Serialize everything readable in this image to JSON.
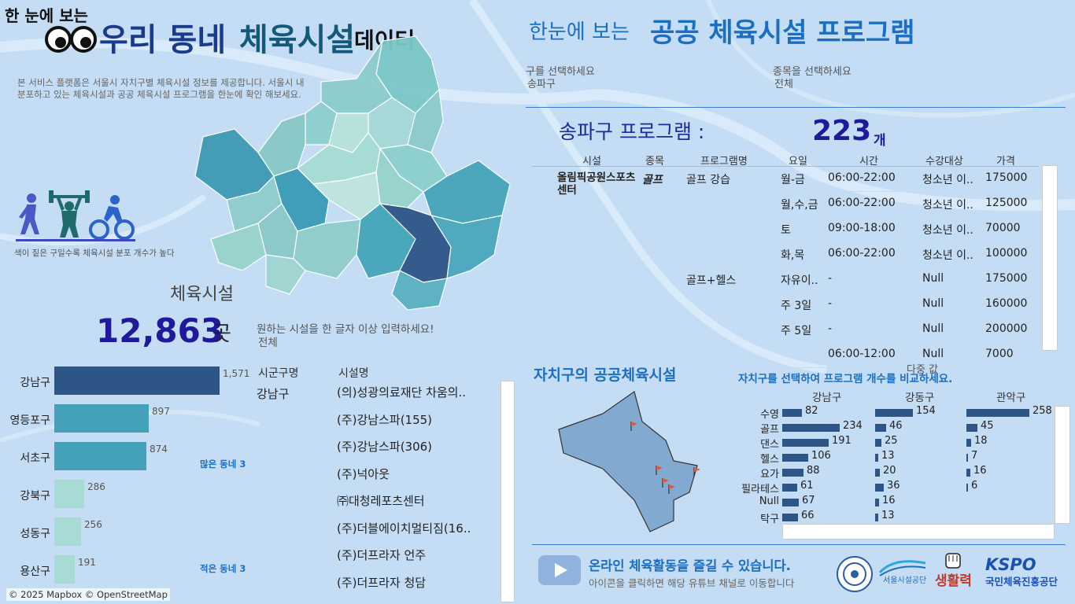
{
  "header": {
    "small_title": "한 눈에 보는",
    "main_title_part1": "우리 동네",
    "main_title_part2": "체육시설",
    "main_title_suffix": "데이터",
    "description": "본 서비스 플랫폼은 서울시 자치구별 체육시설 정보를 제공합니다. 서울시 내 분포하고 있는 체육시설과 공공 체육시설 프로그램을 한눈에 확인 해보세요.",
    "legend_note": "색이 짙은 구일수록 체육시설 분포 개수가 높다"
  },
  "facility_count": {
    "label": "체육시설",
    "value": "12,863",
    "unit": "곳"
  },
  "search": {
    "prompt": "원하는 시설을 한 글자 이상 입력하세요!",
    "value": "전체"
  },
  "district_bars": {
    "items": [
      {
        "name": "강남구",
        "value": 1571,
        "label": "1,571",
        "color": "#2d5586"
      },
      {
        "name": "영등포구",
        "value": 897,
        "label": "897",
        "color": "#45a1b9"
      },
      {
        "name": "서초구",
        "value": 874,
        "label": "874",
        "color": "#45a1b9"
      },
      {
        "name": "강북구",
        "value": 286,
        "label": "286",
        "color": "#a8dbd6"
      },
      {
        "name": "성동구",
        "value": 256,
        "label": "256",
        "color": "#a8dbd6"
      },
      {
        "name": "용산구",
        "value": 191,
        "label": "191",
        "color": "#a8dbd6"
      }
    ],
    "many_label": "많은 동네 3",
    "few_label": "적은 동네 3"
  },
  "facility_list": {
    "headers": [
      "시군구명",
      "시설명"
    ],
    "district": "강남구",
    "rows": [
      "(의)성광의료재단 차움의..",
      "(주)강남스파(155)",
      "(주)강남스파(306)",
      "(주)넉아웃",
      "㈜대청레포츠센터",
      "(주)더블에이치멀티짐(16..",
      "(주)더프라자 언주",
      "(주)더프라자 청담"
    ]
  },
  "map_credit": "© 2025 Mapbox © OpenStreetMap",
  "program": {
    "title_prefix": "한눈에 보는",
    "title_main": "공공 체육시설 프로그램",
    "district_select_label": "구를 선택하세요",
    "district_select_value": "송파구",
    "sport_select_label": "종목을 선택하세요",
    "sport_select_value": "전체",
    "count_label": "송파구 프로그램 :",
    "count_value": "223",
    "count_unit": "개",
    "headers": [
      "시설",
      "종목",
      "프로그램명",
      "요일",
      "시간",
      "수강대상",
      "가격"
    ],
    "facility_name": "올림픽공원스포츠센터",
    "sport": "골프",
    "rows": [
      {
        "prog": "골프 강습",
        "day": "월-금",
        "time": "06:00-22:00",
        "target": "청소년 이..",
        "price": "175000"
      },
      {
        "prog": "",
        "day": "월,수,금",
        "time": "06:00-22:00",
        "target": "청소년 이..",
        "price": "125000"
      },
      {
        "prog": "",
        "day": "토",
        "time": "09:00-18:00",
        "target": "청소년 이..",
        "price": "70000"
      },
      {
        "prog": "",
        "day": "화,목",
        "time": "06:00-22:00",
        "target": "청소년 이..",
        "price": "100000"
      },
      {
        "prog": "골프+헬스",
        "day": "자유이..",
        "time": "-",
        "target": "Null",
        "price": "175000"
      },
      {
        "prog": "",
        "day": "주 3일",
        "time": "-",
        "target": "Null",
        "price": "160000"
      },
      {
        "prog": "",
        "day": "주 5일",
        "time": "-",
        "target": "Null",
        "price": "200000"
      },
      {
        "prog": "",
        "day": "",
        "time": "06:00-12:00",
        "target": "Null",
        "price": "7000"
      }
    ]
  },
  "public_facilities": {
    "title": "자치구의 공공체육시설",
    "compare_title": "자치구를 선택하여 프로그램 개수를 비교하세요.",
    "overlay_text": "다중 값",
    "columns": [
      "강남구",
      "강동구",
      "관악구"
    ],
    "categories": [
      "수영",
      "골프",
      "댄스",
      "헬스",
      "요가",
      "필라테스",
      "Null",
      "탁구"
    ],
    "series": [
      {
        "name": "강남구",
        "values": [
          82,
          234,
          191,
          106,
          88,
          61,
          67,
          66
        ]
      },
      {
        "name": "강동구",
        "values": [
          154,
          46,
          25,
          13,
          20,
          36,
          16,
          13
        ]
      },
      {
        "name": "관악구",
        "values": [
          258,
          45,
          18,
          7,
          16,
          6,
          null,
          null
        ]
      }
    ]
  },
  "footer": {
    "youtube_title": "온라인 체육활동을 즐길 수 있습니다.",
    "youtube_sub": "아이콘을 클릭하면 해당 유튜브 채널로 이동합니다",
    "logo_seoul": "서울시설공단",
    "logo_life": "생활력",
    "logo_kspo": "KSPO",
    "logo_kspo_sub": "국민체육진흥공단"
  },
  "colors": {
    "dark": "#2d5586",
    "mid": "#45a1b9",
    "light": "#a8dbd6",
    "accent_blue": "#1a6fc4",
    "title_blue": "#1a3a8c"
  }
}
